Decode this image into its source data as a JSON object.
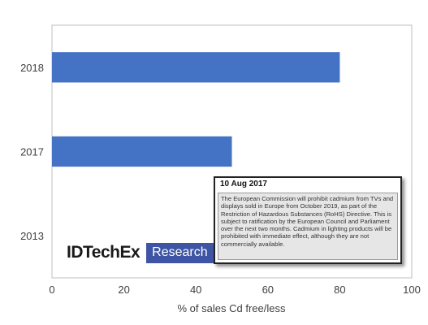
{
  "chart_data": {
    "type": "bar",
    "orientation": "horizontal",
    "categories": [
      "2018",
      "2017",
      "2013"
    ],
    "values": [
      80,
      50,
      0
    ],
    "xlabel": "% of sales Cd free/less",
    "ylabel": "",
    "xlim": [
      0,
      100
    ],
    "xticks": [
      "0",
      "20",
      "40",
      "60",
      "80",
      "100"
    ],
    "bar_color": "#4472c4",
    "grid": false,
    "legend": "none"
  },
  "note": {
    "date": "10 Aug 2017",
    "text": "The European Commission will prohibit cadmium from TVs and displays sold in Europe from October 2019, as part of the Restriction of Hazardous Substances (RoHS) Directive. This is subject to ratification by the European Council and Parliament over the next two months. Cadmium in lighting products will be prohibited with immediate effect, although they are not commercially available."
  },
  "logo": {
    "main": "IDTechEx",
    "badge": "Research",
    "badge_color": "#3e55a6"
  }
}
